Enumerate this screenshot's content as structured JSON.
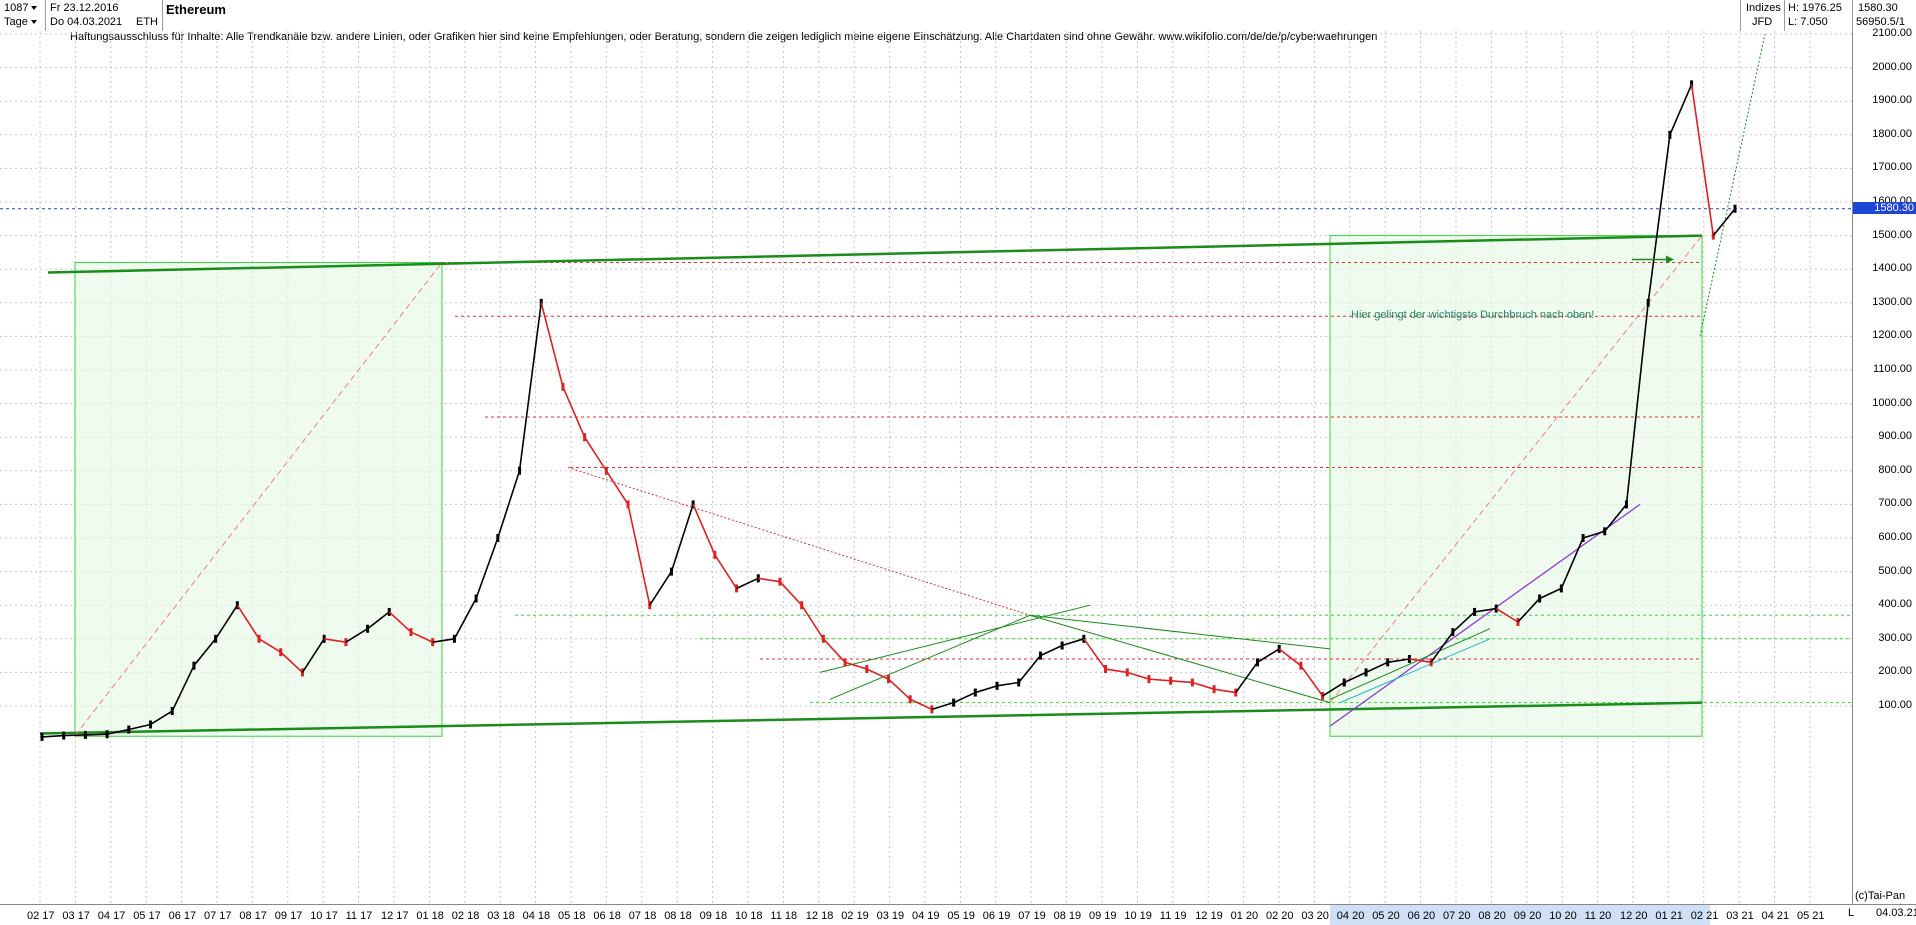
{
  "toolbar": {
    "bar_count": "1087",
    "period": "Tage",
    "date_from": "Fr 23.12.2016",
    "date_to": "Do 04.03.2021",
    "symbol": "ETH",
    "title": "Ethereum",
    "indizes_label": "Indizes",
    "jfd_label": "JFD",
    "high_label": "H: 1976.25",
    "low_label": "L: 7.050",
    "top_value": "1580.30",
    "index_value": "56950.5/1"
  },
  "disclaimer": "Haftungsausschluss für Inhalte: Alle Trendkanäle bzw. andere Linien, oder Grafiken hier sind keine Empfehlungen, oder Beratung, sondern die zeigen lediglich meine eigene Einschätzung. Alle Chartdaten sind ohne Gewähr.  www.wikifolio.com/de/de/p/cyberwaehrungen",
  "annotation": "Hier gelingt der wichtigste Durchbruch nach oben!",
  "copyright": "(c)Tai-Pan",
  "footer": {
    "l_marker": "L",
    "last_date": "04.03.21"
  },
  "colors": {
    "bull": "#000000",
    "bear": "#e02020",
    "green": "#1a8c1a",
    "light_green": "#3bd43b",
    "red_line": "#e03030",
    "blue_line": "#1e44d8",
    "purple": "#8a2be2",
    "cyan": "#20b8c8"
  },
  "chart_data": {
    "type": "line",
    "title": "Ethereum",
    "xlabel": "",
    "ylabel": "",
    "ylim": [
      50,
      2120
    ],
    "current_price": "1580.30",
    "y_ticks": [
      "100.00",
      "200.00",
      "300.00",
      "400.00",
      "500.00",
      "600.00",
      "700.00",
      "800.00",
      "900.00",
      "1000.00",
      "1100.00",
      "1200.00",
      "1300.00",
      "1400.00",
      "1500.00",
      "1600.00",
      "1700.00",
      "1800.00",
      "1900.00",
      "2000.00",
      "2100.00"
    ],
    "x_ticks": [
      "02 17",
      "03 17",
      "04 17",
      "05 17",
      "06 17",
      "07 17",
      "08 17",
      "09 17",
      "10 17",
      "11 17",
      "12 17",
      "01 18",
      "02 18",
      "03 18",
      "04 18",
      "05 18",
      "06 18",
      "07 18",
      "08 18",
      "09 18",
      "10 18",
      "11 18",
      "12 18",
      "02 19",
      "03 19",
      "04 19",
      "05 19",
      "06 19",
      "07 19",
      "08 19",
      "09 19",
      "10 19",
      "11 19",
      "12 19",
      "01 20",
      "02 20",
      "03 20",
      "04 20",
      "05 20",
      "06 20",
      "07 20",
      "08 20",
      "09 20",
      "10 20",
      "11 20",
      "12 20",
      "01 21",
      "02 21",
      "03 21",
      "04 21",
      "05 21"
    ],
    "series": [
      {
        "values": [
          [
            0,
            8
          ],
          [
            1,
            12
          ],
          [
            2,
            14
          ],
          [
            3,
            16
          ],
          [
            4,
            30
          ],
          [
            5,
            45
          ],
          [
            6,
            85
          ],
          [
            7,
            220
          ],
          [
            8,
            300
          ],
          [
            9,
            400
          ],
          [
            10,
            300
          ],
          [
            11,
            260
          ],
          [
            12,
            200
          ],
          [
            13,
            300
          ],
          [
            14,
            290
          ],
          [
            15,
            330
          ],
          [
            16,
            380
          ],
          [
            17,
            320
          ],
          [
            18,
            290
          ],
          [
            19,
            300
          ],
          [
            20,
            420
          ],
          [
            21,
            600
          ],
          [
            22,
            800
          ],
          [
            23,
            1300
          ],
          [
            24,
            1050
          ],
          [
            25,
            900
          ],
          [
            26,
            800
          ],
          [
            27,
            700
          ],
          [
            28,
            400
          ],
          [
            29,
            500
          ],
          [
            30,
            700
          ],
          [
            31,
            550
          ],
          [
            32,
            450
          ],
          [
            33,
            480
          ],
          [
            34,
            470
          ],
          [
            35,
            400
          ],
          [
            36,
            300
          ],
          [
            37,
            230
          ],
          [
            38,
            210
          ],
          [
            39,
            180
          ],
          [
            40,
            120
          ],
          [
            41,
            90
          ],
          [
            42,
            110
          ],
          [
            43,
            140
          ],
          [
            44,
            160
          ],
          [
            45,
            170
          ],
          [
            46,
            250
          ],
          [
            47,
            280
          ],
          [
            48,
            300
          ],
          [
            49,
            210
          ],
          [
            50,
            200
          ],
          [
            51,
            180
          ],
          [
            52,
            175
          ],
          [
            53,
            170
          ],
          [
            54,
            150
          ],
          [
            55,
            140
          ],
          [
            56,
            230
          ],
          [
            57,
            270
          ],
          [
            58,
            220
          ],
          [
            59,
            130
          ],
          [
            60,
            170
          ],
          [
            61,
            200
          ],
          [
            62,
            230
          ],
          [
            63,
            240
          ],
          [
            64,
            230
          ],
          [
            65,
            320
          ],
          [
            66,
            380
          ],
          [
            67,
            390
          ],
          [
            68,
            350
          ],
          [
            69,
            420
          ],
          [
            70,
            450
          ],
          [
            71,
            600
          ],
          [
            72,
            620
          ],
          [
            73,
            700
          ],
          [
            74,
            1300
          ],
          [
            75,
            1800
          ],
          [
            76,
            1950
          ],
          [
            77,
            1500
          ],
          [
            78,
            1580
          ]
        ]
      }
    ],
    "horizontal_levels": [
      1420,
      1260,
      960,
      810,
      370,
      300,
      240,
      110,
      1580
    ],
    "annotation_price": 1420
  }
}
